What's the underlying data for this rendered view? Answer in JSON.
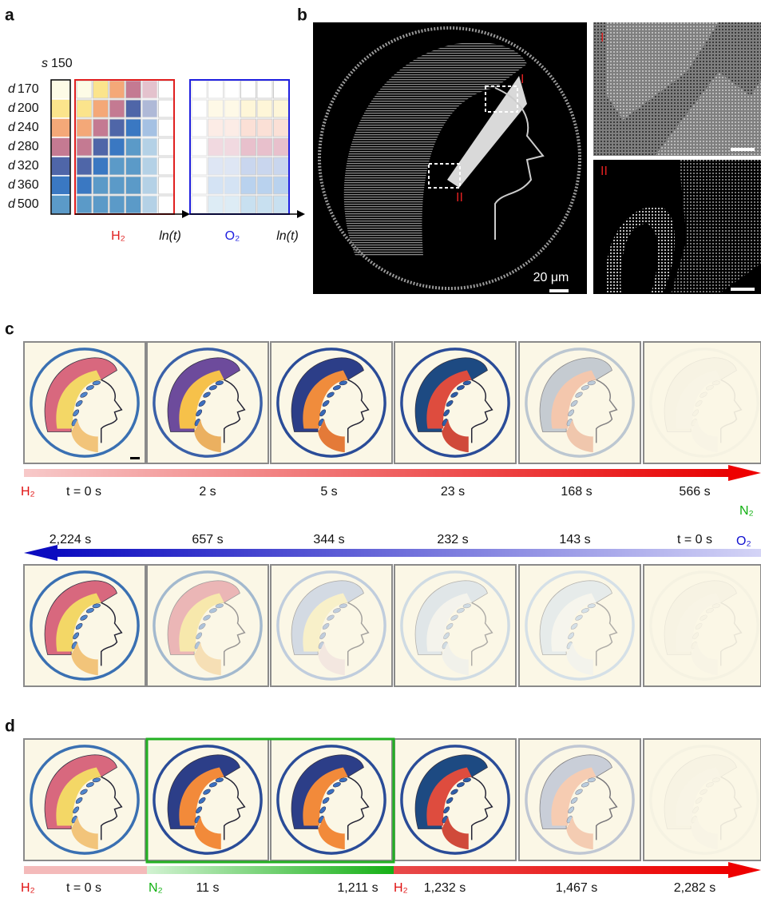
{
  "panel_labels": [
    "a",
    "b",
    "c",
    "d"
  ],
  "panel_a": {
    "s_label": {
      "symbol": "s",
      "value": "150"
    },
    "d_labels": [
      {
        "symbol": "d",
        "value": "170"
      },
      {
        "symbol": "d",
        "value": "200"
      },
      {
        "symbol": "d",
        "value": "240"
      },
      {
        "symbol": "d",
        "value": "280"
      },
      {
        "symbol": "d",
        "value": "320"
      },
      {
        "symbol": "d",
        "value": "360"
      },
      {
        "symbol": "d",
        "value": "500"
      }
    ],
    "gas_labels": [
      "H₂",
      "O₂"
    ],
    "axis_labels": [
      "ln(t)",
      "ln(t)"
    ]
  },
  "panel_b": {
    "region_labels": [
      "I",
      "II"
    ],
    "scale_bar": "20 μm",
    "inset_labels": [
      "I",
      "II"
    ]
  },
  "panel_c": {
    "top_gas": "H₂",
    "top_times": [
      "t = 0 s",
      "2 s",
      "5 s",
      "23 s",
      "168 s",
      "566 s"
    ],
    "switch_gases": [
      "N₂",
      "O₂"
    ],
    "bottom_times": [
      "2,224 s",
      "657 s",
      "344 s",
      "232 s",
      "143 s",
      "t = 0 s"
    ]
  },
  "panel_d": {
    "gases": [
      "H₂",
      "N₂",
      "H₂"
    ],
    "times": [
      "t = 0 s",
      "11 s",
      "1,211 s",
      "1,232 s",
      "1,467 s",
      "2,282 s"
    ]
  }
}
